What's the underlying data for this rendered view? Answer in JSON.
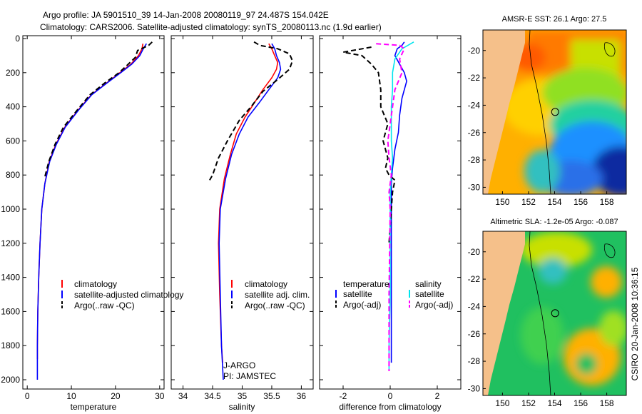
{
  "header": {
    "line1": "Argo profile: JA 5901510_39 14-Jan-2008 20080119_97 24.487S 154.042E",
    "line2": "Climatology: CARS2006. Satellite-adjusted climatology: synTS_20080113.nc (1.9d earlier)"
  },
  "footer_stamp": "CSIRO 20-Jan-2008 10:36:15",
  "colors": {
    "clim": "#ff0000",
    "sat": "#0000ff",
    "argo": "#000000",
    "sal_sat": "#00e5ee",
    "sal_argo": "#ff00ff",
    "land": "#f5c08a"
  },
  "chart_data": [
    {
      "type": "line",
      "xlabel": "temperature",
      "ylim": [
        0,
        2000
      ],
      "xlim": [
        -1,
        31
      ],
      "yticks": [
        0,
        200,
        400,
        600,
        800,
        1000,
        1200,
        1400,
        1600,
        1800,
        2000
      ],
      "xticks": [
        0,
        10,
        20,
        30
      ],
      "legend": [
        "climatology",
        "satellite-adjusted climatology",
        "Argo(..raw -QC)"
      ],
      "series": [
        {
          "name": "climatology",
          "color": "#ff0000",
          "dash": false,
          "x": [
            26.2,
            26.0,
            25.2,
            23.5,
            21.0,
            18.0,
            14.5,
            11.5,
            8.5,
            6.5,
            5.0,
            4.0,
            3.3,
            2.9,
            2.6,
            2.4,
            2.3,
            2.3
          ],
          "y": [
            30,
            60,
            100,
            150,
            200,
            260,
            330,
            420,
            520,
            620,
            720,
            850,
            1000,
            1200,
            1400,
            1600,
            1800,
            1880
          ]
        },
        {
          "name": "satellite-adjusted climatology",
          "color": "#0000ff",
          "dash": false,
          "x": [
            27.0,
            26.3,
            25.5,
            23.7,
            21.2,
            18.1,
            14.6,
            11.6,
            8.6,
            6.6,
            5.1,
            4.0,
            3.3,
            2.9,
            2.6,
            2.4,
            2.3,
            2.3
          ],
          "y": [
            30,
            60,
            100,
            150,
            200,
            260,
            330,
            420,
            520,
            620,
            720,
            850,
            1000,
            1200,
            1400,
            1600,
            1800,
            2000
          ]
        },
        {
          "name": "Argo(..raw -QC)",
          "color": "#000000",
          "dash": true,
          "x": [
            28.3,
            27.5,
            25.0,
            24.5,
            22.5,
            20.8,
            17.6,
            14.2,
            11.3,
            8.2,
            6.3,
            4.9,
            3.9
          ],
          "y": [
            20,
            40,
            70,
            110,
            160,
            200,
            260,
            330,
            420,
            520,
            620,
            720,
            820
          ]
        }
      ]
    },
    {
      "type": "line",
      "xlabel": "salinity",
      "ylim": [
        0,
        2000
      ],
      "xlim": [
        33.8,
        36.2
      ],
      "xticks": [
        34,
        34.5,
        35,
        35.5,
        36
      ],
      "xticklabels": [
        "34",
        "34.5",
        "35",
        "35.5",
        "36"
      ],
      "legend": [
        "climatology",
        "satellite adj. clim.",
        "Argo(..raw -QC)"
      ],
      "annotation": [
        "J-ARGO",
        "PI: JAMSTEC"
      ],
      "series": [
        {
          "name": "climatology",
          "color": "#ff0000",
          "dash": false,
          "x": [
            35.45,
            35.5,
            35.55,
            35.6,
            35.58,
            35.5,
            35.35,
            35.2,
            35.05,
            34.9,
            34.8,
            34.7,
            34.62,
            34.6,
            34.62,
            34.65,
            34.67
          ],
          "y": [
            30,
            60,
            100,
            140,
            180,
            230,
            300,
            380,
            460,
            560,
            680,
            820,
            1000,
            1200,
            1500,
            1800,
            1900
          ]
        },
        {
          "name": "satellite adj. clim.",
          "color": "#0000ff",
          "dash": false,
          "x": [
            35.5,
            35.55,
            35.58,
            35.63,
            35.65,
            35.6,
            35.45,
            35.28,
            35.1,
            34.95,
            34.82,
            34.72,
            34.63,
            34.61,
            34.63,
            34.65,
            34.68
          ],
          "y": [
            30,
            60,
            100,
            140,
            180,
            230,
            300,
            380,
            460,
            560,
            680,
            820,
            1000,
            1200,
            1500,
            1800,
            2000
          ]
        },
        {
          "name": "Argo(..raw -QC)",
          "color": "#000000",
          "dash": true,
          "x": [
            35.2,
            35.3,
            35.6,
            35.8,
            35.85,
            35.8,
            35.6,
            35.35,
            35.15,
            34.95,
            34.75,
            34.6,
            34.5,
            34.45
          ],
          "y": [
            20,
            40,
            60,
            90,
            130,
            180,
            240,
            310,
            400,
            480,
            600,
            700,
            800,
            830
          ]
        }
      ]
    },
    {
      "type": "line",
      "xlabel": "difference from climatology",
      "ylim": [
        0,
        2000
      ],
      "xlim": [
        -3,
        3
      ],
      "xticks": [
        -2,
        0,
        2
      ],
      "legend_headers": [
        "temperature",
        "salinity"
      ],
      "legend": [
        "satellite",
        "Argo(-adj)",
        "satellite",
        "Argo(-adj)"
      ],
      "series": [
        {
          "name": "satellite",
          "group": "temperature",
          "color": "#0000ff",
          "dash": false,
          "x": [
            0.6,
            0.5,
            0.3,
            0.2,
            0.4,
            0.6,
            0.7,
            0.5,
            0.4,
            0.35,
            0.2,
            0.1,
            0.05,
            0.05,
            0.05,
            0.05,
            0.05,
            0.05
          ],
          "y": [
            20,
            40,
            60,
            100,
            150,
            200,
            250,
            350,
            450,
            550,
            650,
            760,
            850,
            1000,
            1200,
            1500,
            1800,
            1900
          ]
        },
        {
          "name": "Argo(-adj)",
          "group": "temperature",
          "color": "#000000",
          "dash": true,
          "x": [
            -0.8,
            -2.0,
            -1.2,
            -0.8,
            -0.5,
            -0.4,
            -0.4,
            -0.1,
            -0.3,
            -0.1,
            -0.2,
            -0.05,
            0.2,
            0.1,
            0.05,
            0.0,
            -0.05
          ],
          "y": [
            50,
            80,
            100,
            150,
            200,
            300,
            400,
            500,
            600,
            700,
            760,
            800,
            830,
            900,
            1000,
            1100,
            1200
          ]
        },
        {
          "name": "satellite",
          "group": "salinity",
          "color": "#00e5ee",
          "dash": false,
          "x": [
            1.0,
            0.5,
            0.2,
            0.1,
            0.1,
            0.05,
            0.05,
            0.05,
            0.1,
            0.05,
            0.0,
            0.0,
            0.0,
            0.0,
            -0.05,
            -0.05
          ],
          "y": [
            20,
            60,
            120,
            200,
            300,
            400,
            500,
            600,
            700,
            800,
            900,
            1000,
            1200,
            1500,
            1800,
            1950
          ]
        },
        {
          "name": "Argo(-adj)",
          "group": "salinity",
          "color": "#ff00ff",
          "dash": true,
          "x": [
            -0.6,
            0.4,
            0.6,
            0.4,
            0.5,
            0.2,
            0.1,
            0.0,
            -0.1,
            -0.05,
            0.05,
            -0.05,
            0.0,
            -0.05,
            -0.05
          ],
          "y": [
            30,
            40,
            60,
            120,
            200,
            300,
            400,
            500,
            600,
            700,
            800,
            900,
            1000,
            1500,
            1950
          ]
        }
      ]
    },
    {
      "type": "heatmap",
      "title": "AMSR-E SST: 26.1  Argo: 27.5",
      "xlim": [
        148.5,
        159.5
      ],
      "ylim": [
        -30.5,
        -18.5
      ],
      "xticks": [
        150,
        152,
        154,
        156,
        158
      ],
      "yticks": [
        -20,
        -22,
        -24,
        -26,
        -28,
        -30
      ],
      "marker": {
        "lon": 154.04,
        "lat": -24.49
      }
    },
    {
      "type": "heatmap",
      "title": "Altimetric SLA: -1.2e-05  Argo: -0.087",
      "xlim": [
        148.5,
        159.5
      ],
      "ylim": [
        -30.5,
        -18.5
      ],
      "xticks": [
        150,
        152,
        154,
        156,
        158
      ],
      "yticks": [
        -20,
        -22,
        -24,
        -26,
        -28,
        -30
      ],
      "marker": {
        "lon": 154.04,
        "lat": -24.49
      }
    }
  ]
}
